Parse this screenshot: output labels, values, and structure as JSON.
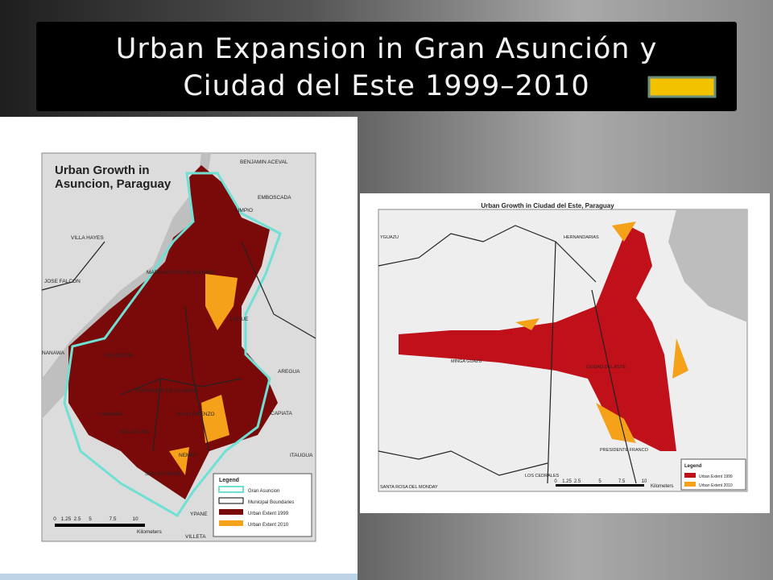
{
  "title": {
    "line1": "Urban Expansion in Gran Asunción y",
    "line2": "Ciudad del Este 1999–2010"
  },
  "map1": {
    "title": [
      "Urban Growth in",
      "Asuncion, Paraguay"
    ],
    "places": [
      "BENJAMIN ACEVAL",
      "EMBOSCADA",
      "LIMPIO",
      "VILLA HAYES",
      "MARIANO ROQUE ALONSO",
      "JOSE FALCON",
      "LUQUE",
      "NANAWA",
      "ASUNCION",
      "AREGUA",
      "FERNANDO DE LA MORA",
      "LAMBARE",
      "SAN LORENZO",
      "CAPIATA",
      "VILLA ELISA",
      "NEMBY",
      "ITAUGUA",
      "SAN ANTONIO",
      "YPANE",
      "VILLETA"
    ],
    "legend": {
      "title": "Legend",
      "items": [
        "Gran Asuncion",
        "Municipal Boundaries",
        "Urban Extent 1999",
        "Urban Extent 2010"
      ]
    },
    "scale": [
      "0",
      "1.25",
      "2.5",
      "5",
      "7.5",
      "10",
      "Kilometers"
    ]
  },
  "map2": {
    "title": "Urban Growth in Ciudad del Este, Paraguay",
    "places": [
      "YGUAZU",
      "HERNANDARIAS",
      "MINGA GUAZU",
      "CIUDAD DEL ESTE",
      "PRESIDENTE FRANCO",
      "LOS CEDRALES",
      "SANTA ROSA DEL MONDAY"
    ],
    "legend": {
      "title": "Legend",
      "items": [
        "Urban Extent 1999",
        "Urban Extent 2010"
      ]
    },
    "scale": [
      "0",
      "1.25",
      "2.5",
      "5",
      "7.5",
      "10",
      "Kilometers"
    ]
  }
}
